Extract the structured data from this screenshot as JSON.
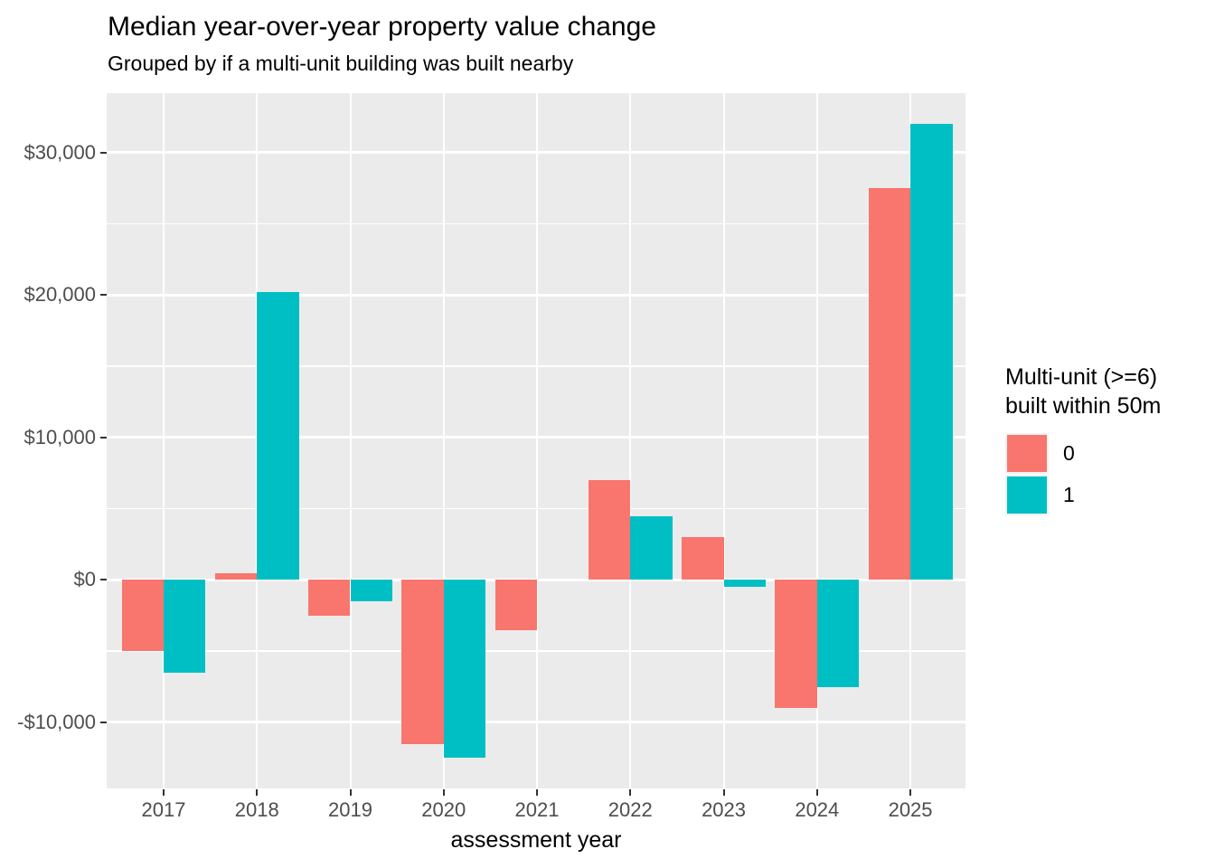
{
  "header": {
    "title": "Median year-over-year property value change",
    "subtitle": "Grouped by if a multi-unit building was built nearby"
  },
  "axes": {
    "x_label": "assessment year",
    "x_ticks": [
      {
        "label": "2017",
        "value": 2017
      },
      {
        "label": "2018",
        "value": 2018
      },
      {
        "label": "2019",
        "value": 2019
      },
      {
        "label": "2020",
        "value": 2020
      },
      {
        "label": "2021",
        "value": 2021
      },
      {
        "label": "2022",
        "value": 2022
      },
      {
        "label": "2023",
        "value": 2023
      },
      {
        "label": "2024",
        "value": 2024
      },
      {
        "label": "2025",
        "value": 2025
      }
    ],
    "y_ticks": [
      {
        "label": "$30,000",
        "value": 30000
      },
      {
        "label": "$20,000",
        "value": 20000
      },
      {
        "label": "$10,000",
        "value": 10000
      },
      {
        "label": "$0",
        "value": 0
      },
      {
        "label": "-$10,000",
        "value": -10000
      }
    ],
    "y_minor_ticks": [
      25000,
      15000,
      5000,
      -5000
    ]
  },
  "legend": {
    "title_line1": "Multi-unit (>=6)",
    "title_line2": "built within 50m",
    "items": [
      {
        "label": "0",
        "color": "#F8766D"
      },
      {
        "label": "1",
        "color": "#00BFC4"
      }
    ],
    "position": "right"
  },
  "colors": {
    "group0": "#F8766D",
    "group1": "#00BFC4",
    "panel_bg": "#EBEBEB",
    "grid": "#FFFFFF",
    "axis_text": "#4D4D4D",
    "tick_mark": "#333333"
  },
  "chart_data": {
    "type": "bar",
    "title": "Median year-over-year property value change",
    "subtitle": "Grouped by if a multi-unit building was built nearby",
    "xlabel": "assessment year",
    "ylabel": "",
    "legend_title": "Multi-unit (>=6) built within 50m",
    "legend_position": "right",
    "grid": "major-and-minor, white on gray panel",
    "bar_layout": "dodged, width 0.45 units per bar, group 0 left of tick, group 1 right of tick",
    "categories": [
      2017,
      2018,
      2019,
      2020,
      2021,
      2022,
      2023,
      2024,
      2025
    ],
    "series": [
      {
        "name": "0",
        "color": "#F8766D",
        "values": [
          -5000,
          500,
          -2500,
          -11500,
          -3500,
          7000,
          3000,
          -9000,
          27500
        ]
      },
      {
        "name": "1",
        "color": "#00BFC4",
        "values": [
          -6500,
          20200,
          -1500,
          -12500,
          null,
          4500,
          -500,
          -7500,
          32000
        ]
      }
    ],
    "ylim": [
      -14635,
      34190
    ],
    "xlim": [
      2016.39,
      2025.59
    ]
  }
}
